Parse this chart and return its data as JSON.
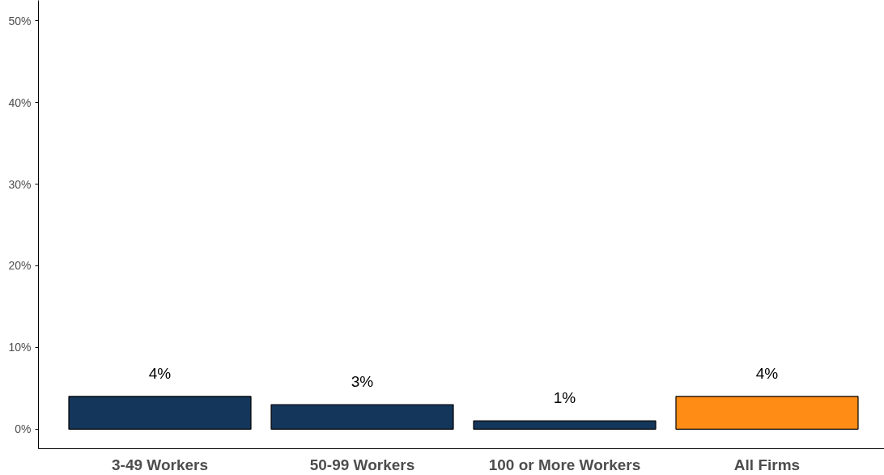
{
  "chart_data": {
    "type": "bar",
    "categories": [
      "3-49 Workers",
      "50-99 Workers",
      "100 or More Workers",
      "All Firms"
    ],
    "values": [
      4,
      3,
      1,
      4
    ],
    "colors": [
      "#14365a",
      "#14365a",
      "#14365a",
      "#ff8c14"
    ],
    "value_labels": [
      "4%",
      "3%",
      "1%",
      "4%"
    ],
    "ylim": [
      -2.4,
      52.5
    ],
    "yticks": [
      {
        "value": 0,
        "label": "0%"
      },
      {
        "value": 10,
        "label": "10%"
      },
      {
        "value": 20,
        "label": "20%"
      },
      {
        "value": 30,
        "label": "30%"
      },
      {
        "value": 40,
        "label": "40%"
      },
      {
        "value": 50,
        "label": "50%"
      }
    ],
    "grid": false
  }
}
